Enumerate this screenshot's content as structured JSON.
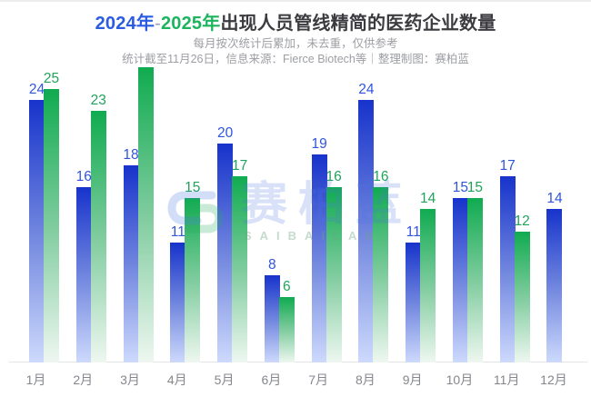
{
  "title": {
    "year_2024": "2024年",
    "dash": "-",
    "year_2025": "2025年",
    "rest": "出现人员管线精简的医药企业数量"
  },
  "subtitle": {
    "line1": "每月按次统计后累加，未去重，仅供参考",
    "line2": "统计截至11月26日，信息来源：Fierce Biotech等｜整理制图：赛柏蓝"
  },
  "watermark": {
    "cn": "赛柏蓝",
    "en": "SAIBAILAN"
  },
  "colors": {
    "title_text": "#3c3c40",
    "title_blue": "#2b5ce1",
    "title_dash": "#98a0b3",
    "title_green": "#1db45f",
    "subtitle": "#9c9ea3",
    "axis_line": "#e2e4e8",
    "month_label": "#85878c",
    "bar_blue_top": "#1733cb",
    "bar_blue_bottom": "#cdd9fc",
    "bar_green_top": "#10ab50",
    "bar_green_bottom": "#eef7f0",
    "label_blue": "#2f55dc",
    "label_green": "#21a35c",
    "wm_cn": "rgba(76,118,224,0.22)",
    "wm_en": "rgba(110,165,130,0.40)",
    "wm_logo_blue": "rgba(76,118,224,0.25)",
    "wm_logo_green": "rgba(40,170,90,0.25)"
  },
  "chart_data": {
    "type": "bar",
    "title": "2024年-2025年出现人员管线精简的医药企业数量",
    "categories": [
      "1月",
      "2月",
      "3月",
      "4月",
      "5月",
      "6月",
      "7月",
      "8月",
      "9月",
      "10月",
      "11月",
      "12月"
    ],
    "series": [
      {
        "name": "2024年",
        "values": [
          24,
          16,
          18,
          11,
          20,
          8,
          19,
          24,
          11,
          15,
          17,
          14
        ]
      },
      {
        "name": "2025年",
        "values": [
          25,
          23,
          27,
          15,
          17,
          6,
          16,
          16,
          14,
          15,
          12,
          null
        ],
        "label_hidden_indices": [
          2
        ]
      }
    ],
    "ylim": [
      0,
      28
    ],
    "grid": false,
    "legend": "none"
  }
}
